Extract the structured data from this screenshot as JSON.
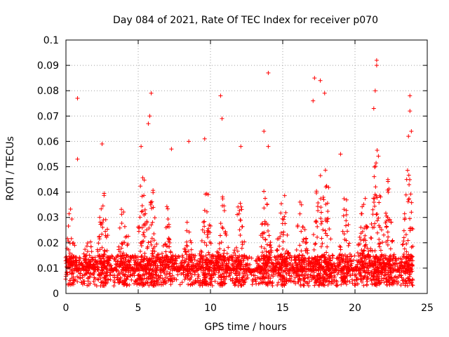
{
  "chart_data": {
    "type": "scatter",
    "title": "Day 084 of 2021, Rate Of TEC Index for receiver p070",
    "xlabel": "GPS time / hours",
    "ylabel": "ROTI / TECUs",
    "xlim": [
      0,
      25
    ],
    "ylim": [
      0,
      0.1
    ],
    "x_ticks": [
      0,
      5,
      10,
      15,
      20,
      25
    ],
    "x_tick_labels": [
      "0",
      "5",
      "10",
      "15",
      "20",
      "25"
    ],
    "y_ticks": [
      0,
      0.01,
      0.02,
      0.03,
      0.04,
      0.05,
      0.06,
      0.07,
      0.08,
      0.09,
      0.1
    ],
    "y_tick_labels": [
      "0",
      "0.01",
      "0.02",
      "0.03",
      "0.04",
      "0.05",
      "0.06",
      "0.07",
      "0.08",
      "0.09",
      "0.1"
    ],
    "grid": true,
    "marker": "+",
    "color": "#ff0000",
    "notable_points": [
      {
        "x": 0.8,
        "y": 0.077
      },
      {
        "x": 0.8,
        "y": 0.053
      },
      {
        "x": 2.5,
        "y": 0.059
      },
      {
        "x": 5.9,
        "y": 0.079
      },
      {
        "x": 5.8,
        "y": 0.07
      },
      {
        "x": 5.7,
        "y": 0.067
      },
      {
        "x": 5.2,
        "y": 0.058
      },
      {
        "x": 7.3,
        "y": 0.057
      },
      {
        "x": 8.5,
        "y": 0.06
      },
      {
        "x": 9.6,
        "y": 0.061
      },
      {
        "x": 10.7,
        "y": 0.078
      },
      {
        "x": 10.8,
        "y": 0.069
      },
      {
        "x": 12.1,
        "y": 0.058
      },
      {
        "x": 13.7,
        "y": 0.064
      },
      {
        "x": 14.0,
        "y": 0.087
      },
      {
        "x": 14.0,
        "y": 0.058
      },
      {
        "x": 17.2,
        "y": 0.085
      },
      {
        "x": 17.6,
        "y": 0.084
      },
      {
        "x": 17.9,
        "y": 0.079
      },
      {
        "x": 17.1,
        "y": 0.076
      },
      {
        "x": 19.0,
        "y": 0.055
      },
      {
        "x": 21.5,
        "y": 0.092
      },
      {
        "x": 21.5,
        "y": 0.09
      },
      {
        "x": 21.4,
        "y": 0.08
      },
      {
        "x": 21.3,
        "y": 0.073
      },
      {
        "x": 23.8,
        "y": 0.078
      },
      {
        "x": 23.8,
        "y": 0.072
      },
      {
        "x": 23.9,
        "y": 0.064
      },
      {
        "x": 23.7,
        "y": 0.062
      }
    ],
    "series": [
      {
        "name": "ROTI",
        "x_start": 0,
        "x_end": 24,
        "step_hours": 0.05,
        "baseline": 0.009,
        "peaks": [
          {
            "x": 0.3,
            "y": 0.035
          },
          {
            "x": 1.5,
            "y": 0.025
          },
          {
            "x": 2.6,
            "y": 0.045
          },
          {
            "x": 4.0,
            "y": 0.04
          },
          {
            "x": 5.3,
            "y": 0.05
          },
          {
            "x": 6.0,
            "y": 0.045
          },
          {
            "x": 7.0,
            "y": 0.035
          },
          {
            "x": 8.5,
            "y": 0.03
          },
          {
            "x": 9.7,
            "y": 0.05
          },
          {
            "x": 10.8,
            "y": 0.045
          },
          {
            "x": 12.0,
            "y": 0.04
          },
          {
            "x": 13.8,
            "y": 0.045
          },
          {
            "x": 15.0,
            "y": 0.045
          },
          {
            "x": 16.3,
            "y": 0.04
          },
          {
            "x": 17.5,
            "y": 0.05
          },
          {
            "x": 18.0,
            "y": 0.05
          },
          {
            "x": 19.3,
            "y": 0.04
          },
          {
            "x": 20.6,
            "y": 0.04
          },
          {
            "x": 21.5,
            "y": 0.06
          },
          {
            "x": 22.3,
            "y": 0.045
          },
          {
            "x": 23.7,
            "y": 0.05
          }
        ]
      }
    ]
  }
}
